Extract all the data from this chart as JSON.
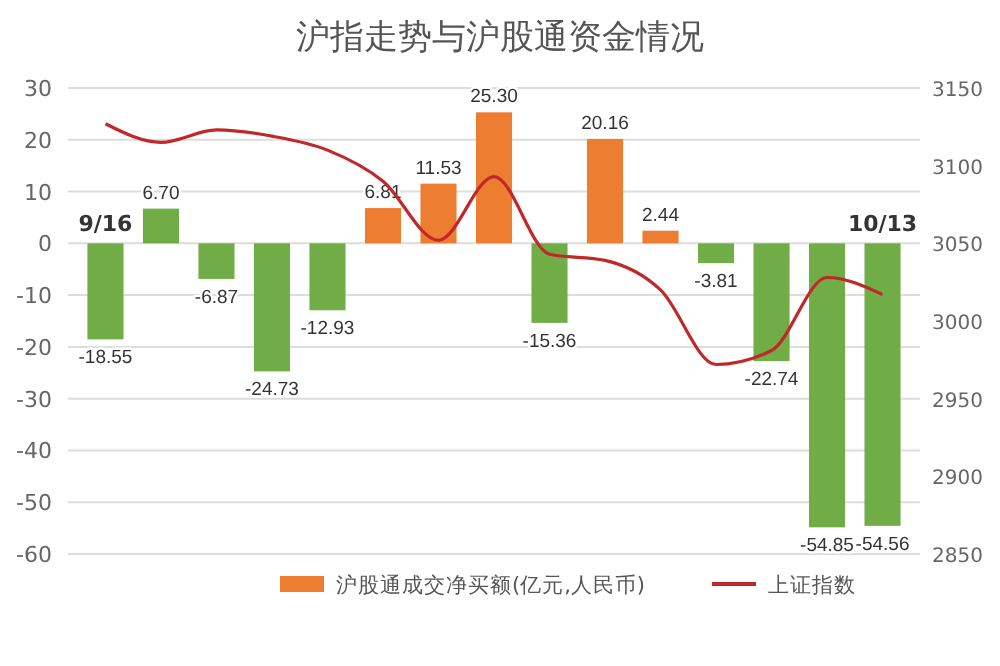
{
  "chart_data": {
    "type": "bar",
    "title": "沪指走势与沪股通资金情况",
    "categories": [
      "9/16",
      null,
      null,
      null,
      null,
      null,
      null,
      null,
      null,
      null,
      null,
      null,
      null,
      null,
      "10/13"
    ],
    "series": [
      {
        "name": "沪股通成交净买额(亿元,人民币)",
        "color": "#ed7d31",
        "colors": [
          "#70ad47",
          "#70ad47",
          "#70ad47",
          "#70ad47",
          "#70ad47",
          "#ed7d31",
          "#ed7d31",
          "#ed7d31",
          "#70ad47",
          "#ed7d31",
          "#ed7d31",
          "#70ad47",
          "#70ad47",
          "#70ad47",
          "#70ad47"
        ],
        "values": [
          -18.55,
          6.7,
          -6.87,
          -24.73,
          -12.93,
          6.81,
          11.53,
          25.3,
          -15.36,
          20.16,
          2.44,
          -3.81,
          -22.74,
          -54.85,
          -54.56
        ],
        "value_labels": [
          "-18.55",
          "6.70",
          "-6.87",
          "-24.73",
          "-12.93",
          "6.81",
          "11.53",
          "25.30",
          "-15.36",
          "20.16",
          "2.44",
          "-3.81",
          "-22.74",
          "-54.85",
          "-54.56"
        ]
      },
      {
        "type": "line",
        "name": "上证指数",
        "color": "#c0282a",
        "axis": "y2",
        "values": [
          3127,
          3115,
          3123,
          3119,
          3110,
          3090,
          3052,
          3093,
          3043,
          3039,
          3020,
          2972,
          2981,
          3028,
          3017
        ]
      }
    ],
    "ylim": [
      -60,
      30
    ],
    "yticks": [
      -60,
      -50,
      -40,
      -30,
      -20,
      -10,
      0,
      10,
      20,
      30
    ],
    "y2lim": [
      2850,
      3150
    ],
    "y2ticks": [
      2850,
      2900,
      2950,
      3000,
      3050,
      3100,
      3150
    ],
    "grid": "y",
    "legend": "bottom",
    "marker": "none",
    "line_style": "solid"
  }
}
